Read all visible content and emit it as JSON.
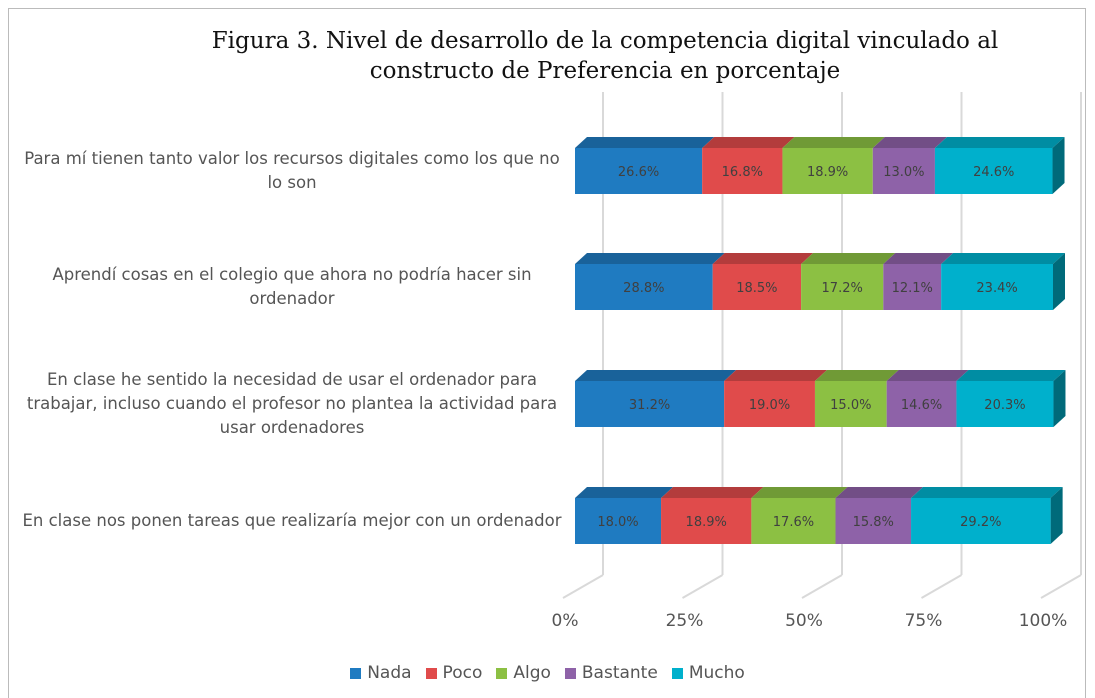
{
  "chart_data": {
    "type": "bar3d-stacked-horizontal",
    "title": "Figura 3. Nivel de desarrollo de la competencia digital vinculado al constructo de Preferencia en porcentaje",
    "categories": [
      "Para mí tienen tanto valor los recursos digitales como los que no lo son",
      "Aprendí cosas en el colegio que ahora no podría hacer sin ordenador",
      "En clase he sentido la necesidad de usar el ordenador para trabajar, incluso cuando el profesor no plantea la actividad para usar ordenadores",
      "En clase nos ponen tareas que realizaría mejor con un ordenador"
    ],
    "series": [
      {
        "name": "Nada",
        "color": "#1f7bc1",
        "values": [
          26.6,
          28.8,
          31.2,
          18.0
        ],
        "value_labels": [
          "26.6%",
          "28.8%",
          "31.2%",
          "18.0%"
        ]
      },
      {
        "name": "Poco",
        "color": "#e04b4b",
        "values": [
          16.8,
          18.5,
          19.0,
          18.9
        ],
        "value_labels": [
          "16.8%",
          "18.5%",
          "19.0%",
          "18.9%"
        ]
      },
      {
        "name": "Algo",
        "color": "#8cc043",
        "values": [
          18.9,
          17.2,
          15.0,
          17.6
        ],
        "value_labels": [
          "18.9%",
          "17.2%",
          "15.0%",
          "17.6%"
        ]
      },
      {
        "name": "Bastante",
        "color": "#8e62a8",
        "values": [
          13.0,
          12.1,
          14.6,
          15.8
        ],
        "value_labels": [
          "13.0%",
          "12.1%",
          "14.6%",
          "15.8%"
        ]
      },
      {
        "name": "Mucho",
        "color": "#00b0cc",
        "values": [
          24.6,
          23.4,
          20.3,
          29.2
        ],
        "value_labels": [
          "24.6%",
          "23.4%",
          "20.3%",
          "29.2%"
        ]
      }
    ],
    "xlim": [
      0,
      100
    ],
    "xticks": [
      {
        "value": 0,
        "label": "0%"
      },
      {
        "value": 25,
        "label": "25%"
      },
      {
        "value": 50,
        "label": "50%"
      },
      {
        "value": 75,
        "label": "75%"
      },
      {
        "value": 100,
        "label": "100%"
      }
    ],
    "grid": true,
    "legend": "bottom"
  }
}
